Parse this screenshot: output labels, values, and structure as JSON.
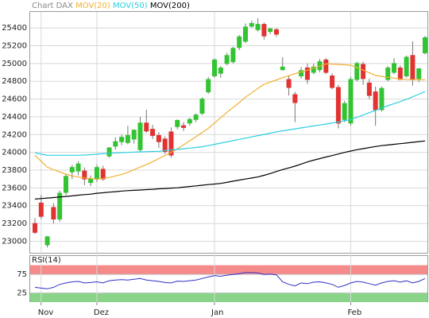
{
  "chart_data": [
    {
      "type": "candlestick",
      "title": "Chart DAX",
      "categories": [
        null,
        "Nov",
        null,
        null,
        null,
        null,
        null,
        null,
        null,
        null,
        "Dez",
        null,
        null,
        null,
        null,
        null,
        null,
        null,
        null,
        null,
        null,
        null,
        null,
        null,
        null,
        null,
        null,
        null,
        null,
        "Jan",
        null,
        null,
        null,
        null,
        null,
        null,
        null,
        null,
        null,
        null,
        null,
        null,
        null,
        null,
        null,
        null,
        null,
        null,
        null,
        null,
        null,
        "Feb",
        null,
        null,
        null,
        null,
        null,
        null,
        null,
        null,
        null,
        null,
        null,
        null
      ],
      "open": [
        23200,
        23430,
        22960,
        23380,
        23250,
        23550,
        23780,
        23790,
        23790,
        23660,
        23700,
        23810,
        23960,
        24070,
        24120,
        24110,
        24150,
        24030,
        24330,
        24260,
        24190,
        24150,
        24230,
        24290,
        24300,
        24330,
        24370,
        24440,
        24680,
        24860,
        24890,
        25000,
        25020,
        25180,
        25250,
        25420,
        25380,
        25440,
        25360,
        25380,
        24930,
        24820,
        24650,
        24860,
        24950,
        24900,
        24930,
        25040,
        24860,
        24730,
        24370,
        24330,
        24820,
        24990,
        24780,
        24680,
        24480,
        24820,
        24900,
        24950,
        24860,
        25090,
        24830,
        25120
      ],
      "high": [
        23260,
        23520,
        23060,
        23430,
        23570,
        23750,
        23860,
        23900,
        23830,
        23740,
        23860,
        23850,
        24060,
        24170,
        24200,
        24300,
        24260,
        24400,
        24480,
        24310,
        24230,
        24180,
        24280,
        24370,
        24340,
        24390,
        24440,
        24620,
        24850,
        25060,
        24970,
        25120,
        25190,
        25320,
        25450,
        25480,
        25510,
        25460,
        25400,
        25400,
        25070,
        24860,
        24680,
        24960,
        25000,
        25000,
        25050,
        25060,
        24890,
        24760,
        24580,
        24850,
        25020,
        25020,
        24830,
        24740,
        24740,
        24970,
        25060,
        24980,
        25090,
        25250,
        24950,
        25310
      ],
      "low": [
        23080,
        23250,
        22930,
        23200,
        23220,
        23520,
        23700,
        23740,
        23630,
        23620,
        23670,
        23680,
        23940,
        24030,
        24080,
        24090,
        24100,
        24000,
        24220,
        24150,
        24050,
        23980,
        23940,
        24260,
        24240,
        24300,
        24340,
        24420,
        24660,
        24840,
        24840,
        24980,
        25000,
        25150,
        25230,
        25400,
        25360,
        25270,
        25330,
        25300,
        24920,
        24640,
        24340,
        24830,
        24770,
        24880,
        24900,
        24880,
        24710,
        24270,
        24340,
        24300,
        24800,
        24760,
        24600,
        24300,
        24460,
        24800,
        24880,
        24820,
        24840,
        24750,
        24790,
        25100
      ],
      "close": [
        23100,
        23280,
        23050,
        23250,
        23540,
        23730,
        23830,
        23870,
        23700,
        23700,
        23830,
        23700,
        24050,
        24120,
        24170,
        24190,
        24250,
        24330,
        24240,
        24190,
        24120,
        24010,
        23970,
        24360,
        24280,
        24370,
        24420,
        24600,
        24820,
        25040,
        24950,
        25090,
        25170,
        25300,
        25410,
        25450,
        25440,
        25310,
        25390,
        25330,
        24960,
        24730,
        24560,
        24920,
        24820,
        24960,
        25020,
        24900,
        24730,
        24330,
        24550,
        24820,
        25000,
        24830,
        24640,
        24480,
        24720,
        24950,
        25000,
        24820,
        25070,
        24820,
        24940,
        25290
      ],
      "up_color": "#33c433",
      "down_color": "#e23232",
      "series": [
        {
          "name": "MOV(20)",
          "color": "#f0b030",
          "values": [
            23967,
            23900,
            23833,
            23805,
            23780,
            23755,
            23735,
            23722,
            23712,
            23705,
            23700,
            23705,
            23718,
            23735,
            23752,
            23775,
            23805,
            23835,
            23862,
            23895,
            23930,
            23965,
            24000,
            24040,
            24085,
            24130,
            24175,
            24224,
            24270,
            24330,
            24390,
            24450,
            24505,
            24560,
            24620,
            24670,
            24720,
            24767,
            24790,
            24815,
            24840,
            24862,
            24885,
            24905,
            24925,
            24948,
            24970,
            24995,
            24993,
            24990,
            24985,
            24980,
            24955,
            24925,
            24895,
            24865,
            24855,
            24845,
            24835,
            24825,
            24818,
            24818,
            24818,
            24818
          ]
        },
        {
          "name": "MOV(50)",
          "color": "#2ccfe0",
          "values": [
            23994,
            23980,
            23967,
            23967,
            23967,
            23967,
            23967,
            23967,
            23970,
            23975,
            23980,
            23984,
            23990,
            23994,
            23997,
            24000,
            24003,
            24006,
            24008,
            24010,
            24012,
            24020,
            24027,
            24034,
            24041,
            24048,
            24055,
            24063,
            24076,
            24090,
            24104,
            24118,
            24132,
            24146,
            24160,
            24174,
            24188,
            24202,
            24216,
            24230,
            24242,
            24253,
            24264,
            24275,
            24286,
            24297,
            24308,
            24319,
            24331,
            24343,
            24356,
            24368,
            24394,
            24420,
            24447,
            24473,
            24500,
            24525,
            24548,
            24572,
            24596,
            24625,
            24654,
            24684
          ]
        },
        {
          "name": "MOV(200)",
          "color": "#000000",
          "values": [
            23475,
            23480,
            23486,
            23492,
            23498,
            23504,
            23510,
            23518,
            23525,
            23530,
            23540,
            23545,
            23552,
            23558,
            23565,
            23569,
            23573,
            23577,
            23581,
            23585,
            23590,
            23594,
            23598,
            23602,
            23609,
            23616,
            23623,
            23630,
            23637,
            23644,
            23651,
            23662,
            23676,
            23688,
            23700,
            23712,
            23723,
            23742,
            23762,
            23785,
            23806,
            23825,
            23845,
            23868,
            23892,
            23912,
            23930,
            23948,
            23964,
            23982,
            24000,
            24015,
            24030,
            24042,
            24054,
            24066,
            24076,
            24083,
            24091,
            24098,
            24105,
            24113,
            24121,
            24128
          ]
        }
      ],
      "ylim": [
        22870,
        25580
      ],
      "yticks": [
        23000,
        23200,
        23400,
        23600,
        23800,
        24000,
        24200,
        24400,
        24600,
        24800,
        25000,
        25200,
        25400
      ],
      "grid": true
    },
    {
      "type": "line",
      "title": "RSI(14)",
      "color": "#3030c8",
      "values": [
        40,
        38,
        36,
        40,
        48,
        52,
        55,
        56,
        52,
        53,
        55,
        52,
        58,
        60,
        61,
        60,
        62,
        64,
        60,
        58,
        56,
        53,
        52,
        57,
        56,
        58,
        60,
        64,
        68,
        72,
        70,
        73,
        75,
        77,
        80,
        80,
        79,
        75,
        76,
        74,
        55,
        48,
        44,
        52,
        50,
        54,
        55,
        52,
        48,
        40,
        45,
        52,
        56,
        54,
        50,
        46,
        52,
        56,
        58,
        54,
        58,
        52,
        56,
        64
      ],
      "bands": [
        {
          "from": 75,
          "to": 100,
          "color": "#f48a8a"
        },
        {
          "from": 0,
          "to": 25,
          "color": "#8ad48a"
        }
      ],
      "ylim": [
        0,
        125
      ],
      "yticks": [
        25,
        75
      ],
      "grid": true
    }
  ]
}
